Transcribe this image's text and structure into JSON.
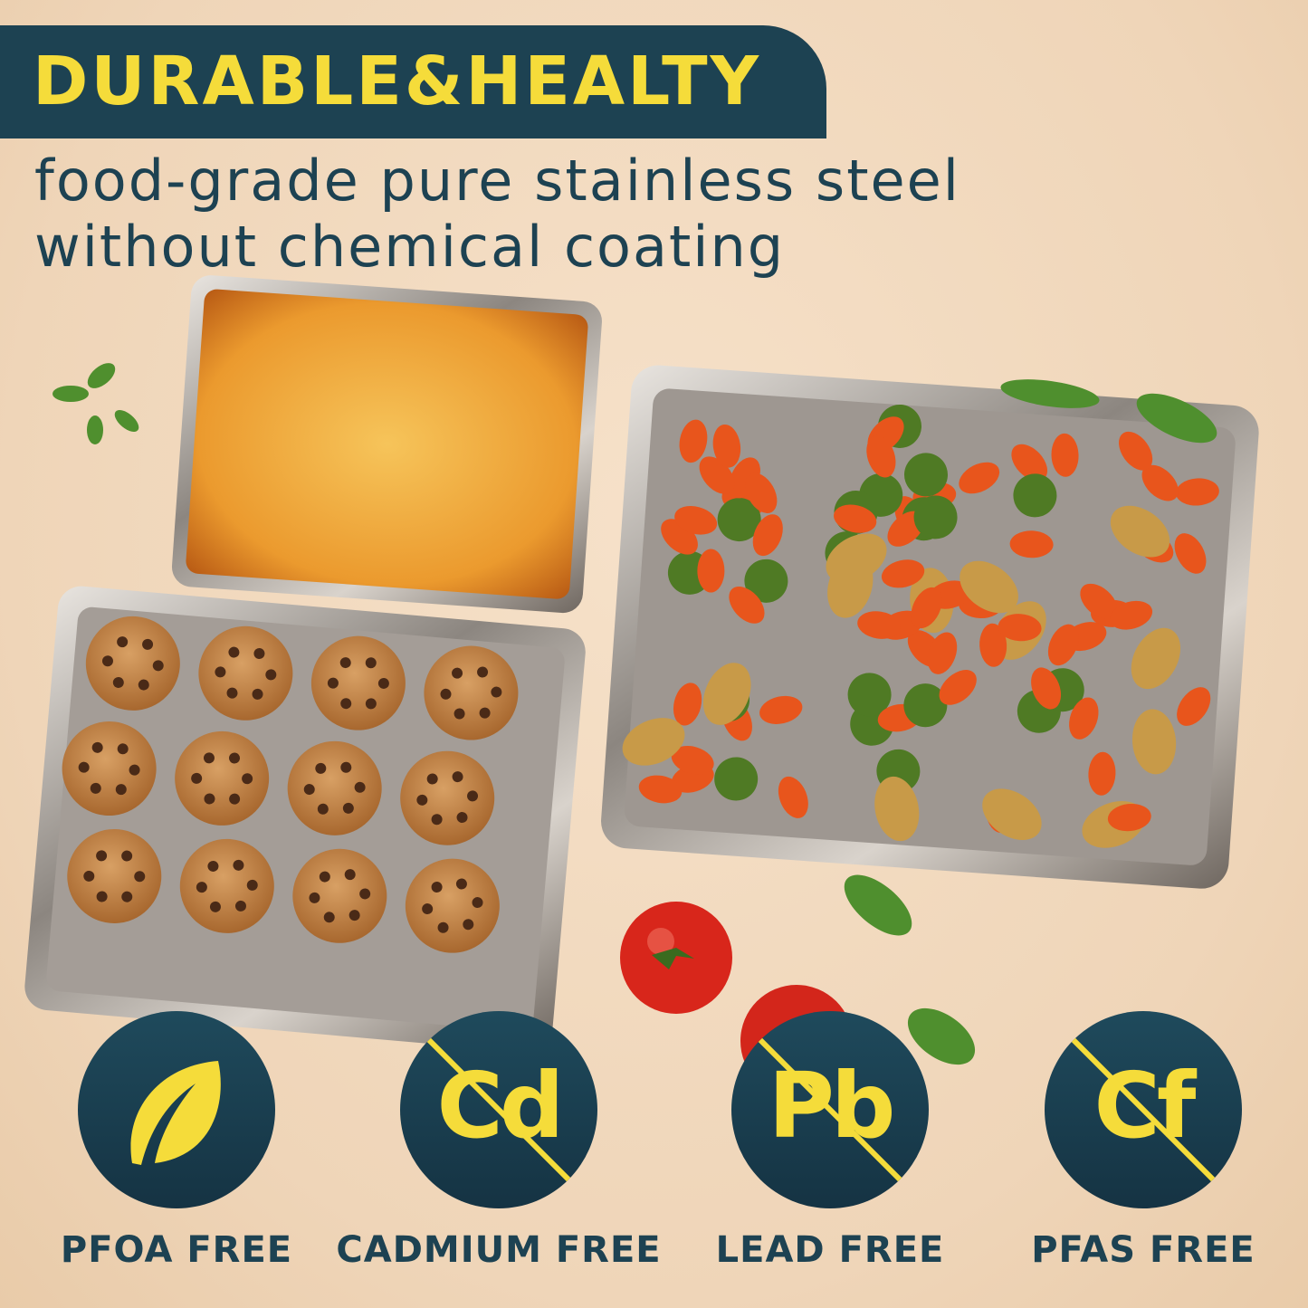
{
  "header": {
    "title": "DURABLE&HEALTY",
    "subtitle_line1": "food-grade pure stainless steel",
    "subtitle_line2": "without chemical coating"
  },
  "badges": [
    {
      "icon": "leaf-icon",
      "symbol": "",
      "label": "PFOA FREE",
      "crossed": false
    },
    {
      "icon": "cadmium-crossed-icon",
      "symbol": "Cd",
      "label": "CADMIUM FREE",
      "crossed": true
    },
    {
      "icon": "lead-crossed-icon",
      "symbol": "Pb",
      "label": "LEAD FREE",
      "crossed": true
    },
    {
      "icon": "pfas-crossed-icon",
      "symbol": "Cf",
      "label": "PFAS FREE",
      "crossed": true
    }
  ],
  "colors": {
    "banner": "#1d4252",
    "accent_yellow": "#f5dc3a",
    "background": "#f1d9bf"
  }
}
